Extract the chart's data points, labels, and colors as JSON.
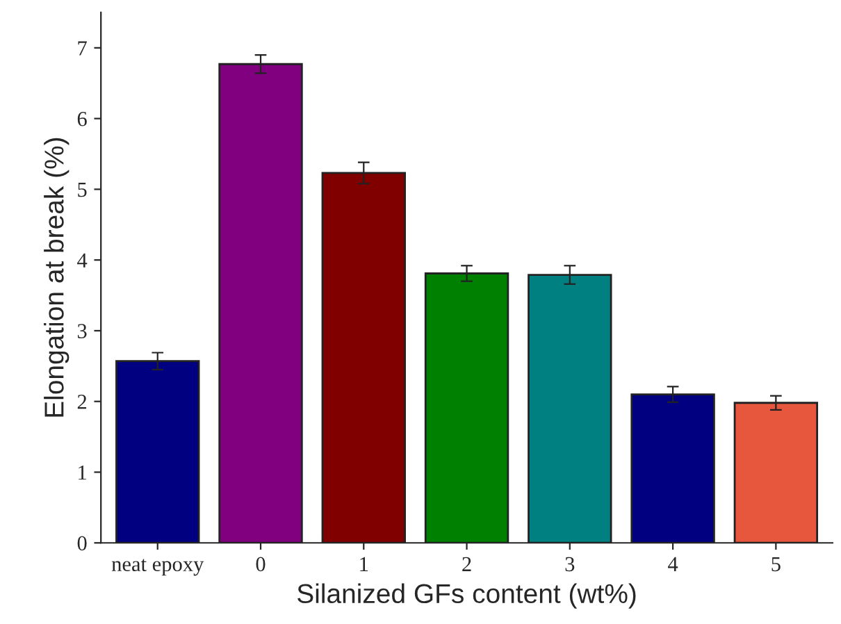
{
  "chart_data": {
    "type": "bar",
    "xlabel": "Silanized GFs content (wt%)",
    "ylabel": "Elongation at break (%)",
    "categories": [
      "neat epoxy",
      "0",
      "1",
      "2",
      "3",
      "4",
      "5"
    ],
    "values": [
      2.57,
      6.77,
      5.23,
      3.81,
      3.79,
      2.1,
      1.98
    ],
    "errors": [
      0.12,
      0.13,
      0.15,
      0.11,
      0.13,
      0.11,
      0.1
    ],
    "colors": [
      "#000080",
      "#800080",
      "#800000",
      "#008000",
      "#008080",
      "#000080",
      "#e6573d"
    ],
    "ylim": [
      0,
      7.5
    ],
    "yticks": [
      0,
      1,
      2,
      3,
      4,
      5,
      6,
      7
    ],
    "grid": false
  }
}
